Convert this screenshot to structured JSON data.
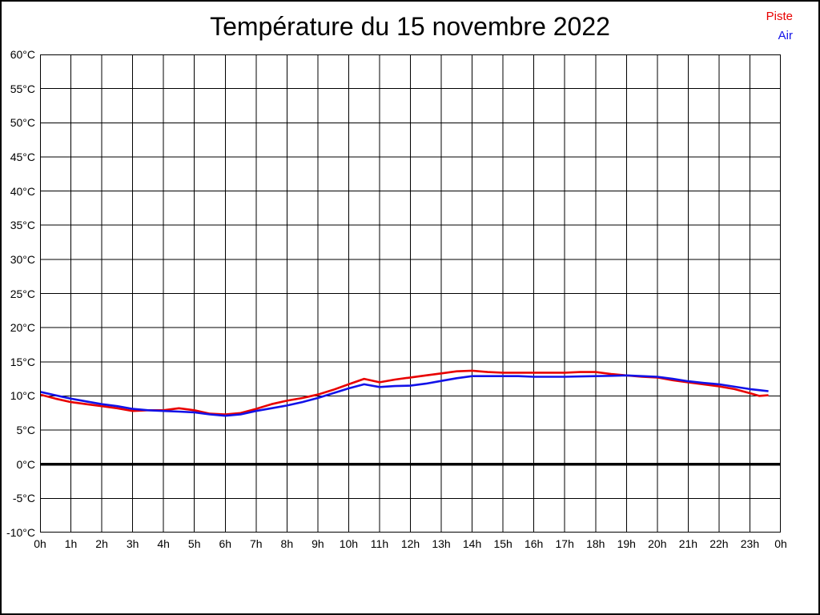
{
  "title": "Température du 15 novembre 2022",
  "legend": {
    "items": [
      {
        "label": "Piste",
        "color": "#e80000"
      },
      {
        "label": "Air",
        "color": "#1212e8"
      }
    ]
  },
  "chart_data": {
    "type": "line",
    "title": "Température du 15 novembre 2022",
    "xlabel": "",
    "ylabel": "",
    "ylim": [
      -10,
      60
    ],
    "y_tick_step": 5,
    "xlim_hours": [
      0,
      24
    ],
    "x_tick_step_hours": 1,
    "grid": true,
    "zero_line_bold": true,
    "legend_position": "top-right",
    "y_tick_labels": [
      "60°C",
      "55°C",
      "50°C",
      "45°C",
      "40°C",
      "35°C",
      "30°C",
      "25°C",
      "20°C",
      "15°C",
      "10°C",
      "5°C",
      "0°C",
      "-5°C",
      "-10°C"
    ],
    "x_tick_labels": [
      "0h",
      "1h",
      "2h",
      "3h",
      "4h",
      "5h",
      "6h",
      "7h",
      "8h",
      "9h",
      "10h",
      "11h",
      "12h",
      "13h",
      "14h",
      "15h",
      "16h",
      "17h",
      "18h",
      "19h",
      "20h",
      "21h",
      "22h",
      "23h",
      "0h"
    ],
    "x_hours": [
      0,
      0.5,
      1,
      1.5,
      2,
      2.5,
      3,
      3.5,
      4,
      4.5,
      5,
      5.5,
      6,
      6.5,
      7,
      7.5,
      8,
      8.5,
      9,
      9.5,
      10,
      10.5,
      11,
      11.5,
      12,
      12.5,
      13,
      13.5,
      14,
      14.5,
      15,
      15.5,
      16,
      16.5,
      17,
      17.5,
      18,
      18.5,
      19,
      19.5,
      20,
      20.5,
      21,
      21.5,
      22,
      22.5,
      23,
      23.3,
      23.6
    ],
    "series": [
      {
        "name": "Piste",
        "color": "#e80000",
        "values": [
          10.2,
          9.6,
          9.1,
          8.8,
          8.5,
          8.2,
          7.8,
          7.9,
          7.9,
          8.2,
          7.9,
          7.4,
          7.3,
          7.5,
          8.1,
          8.8,
          9.3,
          9.7,
          10.2,
          10.9,
          11.7,
          12.5,
          12.0,
          12.4,
          12.7,
          13.0,
          13.3,
          13.6,
          13.7,
          13.5,
          13.4,
          13.4,
          13.4,
          13.4,
          13.4,
          13.5,
          13.5,
          13.2,
          13.0,
          12.8,
          12.7,
          12.3,
          12.0,
          11.7,
          11.4,
          11.0,
          10.4,
          10.0,
          10.1
        ]
      },
      {
        "name": "Air",
        "color": "#1212e8",
        "values": [
          10.6,
          10.1,
          9.6,
          9.2,
          8.8,
          8.5,
          8.1,
          7.9,
          7.8,
          7.7,
          7.6,
          7.3,
          7.1,
          7.3,
          7.8,
          8.2,
          8.6,
          9.1,
          9.7,
          10.4,
          11.1,
          11.7,
          11.3,
          11.45,
          11.5,
          11.8,
          12.2,
          12.6,
          12.9,
          12.9,
          12.9,
          12.9,
          12.8,
          12.8,
          12.8,
          12.85,
          12.9,
          12.95,
          13.0,
          12.9,
          12.8,
          12.5,
          12.15,
          11.9,
          11.7,
          11.35,
          11.0,
          10.85,
          10.7
        ]
      }
    ]
  }
}
